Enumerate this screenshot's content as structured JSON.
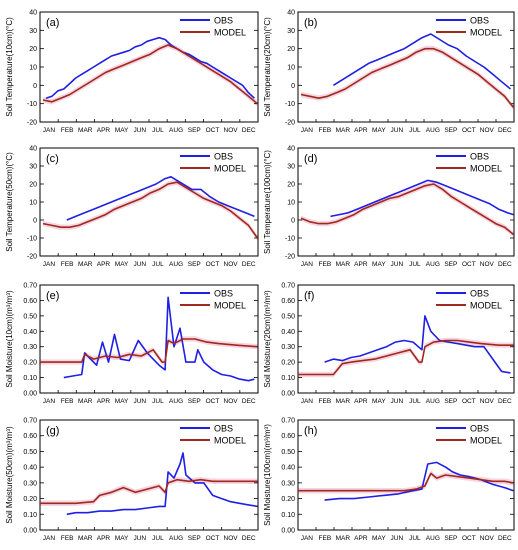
{
  "months": [
    "JAN",
    "FEB",
    "MAR",
    "APR",
    "MAY",
    "JUN",
    "JUL",
    "AUG",
    "SEP",
    "OCT",
    "NOV",
    "DEC"
  ],
  "legend": {
    "obs": "OBS",
    "model": "MODEL"
  },
  "colors": {
    "obs": "#1f1fe6",
    "model": "#a0291d",
    "band": "#f4c9d9"
  },
  "chart_data": [
    {
      "type": "line",
      "panel_label": "(a)",
      "ylabel": "Soil Temperature(10cm)(°C)",
      "ylim": [
        -20,
        40
      ],
      "yticks": [
        "-20",
        "-10",
        "0",
        "10",
        "20",
        "30",
        "40"
      ],
      "legend_position": "top-right",
      "series": [
        {
          "name": "OBS",
          "x": [
            10,
            20,
            30,
            40,
            50,
            60,
            70,
            80,
            90,
            100,
            110,
            120,
            130,
            140,
            150,
            160,
            170,
            180,
            190,
            200,
            210,
            220,
            230,
            240,
            250,
            260,
            270,
            280,
            290,
            300,
            310,
            320,
            330,
            340,
            350,
            360
          ],
          "y": [
            -7,
            -6,
            -3,
            -2,
            1,
            4,
            6,
            8,
            10,
            12,
            14,
            16,
            17,
            18,
            19,
            21,
            22,
            24,
            25,
            26,
            25,
            22,
            20,
            18,
            17,
            15,
            13,
            12,
            10,
            8,
            6,
            4,
            2,
            0,
            -4,
            -7
          ]
        },
        {
          "name": "MODEL",
          "x": [
            5,
            20,
            35,
            50,
            65,
            80,
            95,
            110,
            125,
            140,
            155,
            170,
            185,
            200,
            215,
            230,
            245,
            260,
            275,
            290,
            305,
            320,
            335,
            350,
            365
          ],
          "y": [
            -8,
            -9,
            -7,
            -5,
            -2,
            1,
            4,
            7,
            9,
            11,
            13,
            15,
            17,
            20,
            22,
            20,
            17,
            14,
            11,
            8,
            5,
            2,
            -2,
            -6,
            -10
          ]
        }
      ]
    },
    {
      "type": "line",
      "panel_label": "(b)",
      "ylabel": "Soil Temperature(20cm)(°C)",
      "ylim": [
        -20,
        40
      ],
      "yticks": [
        "-20",
        "-10",
        "0",
        "10",
        "20",
        "30",
        "40"
      ],
      "legend_position": "top-right",
      "series": [
        {
          "name": "OBS",
          "x": [
            60,
            75,
            90,
            105,
            120,
            135,
            150,
            165,
            180,
            195,
            210,
            225,
            240,
            255,
            270,
            285,
            300,
            315,
            330,
            345,
            360
          ],
          "y": [
            0,
            3,
            6,
            9,
            12,
            14,
            16,
            18,
            20,
            23,
            26,
            28,
            25,
            22,
            20,
            16,
            13,
            10,
            6,
            2,
            -2
          ]
        },
        {
          "name": "MODEL",
          "x": [
            5,
            20,
            35,
            50,
            65,
            80,
            95,
            110,
            125,
            140,
            155,
            170,
            185,
            200,
            215,
            230,
            245,
            260,
            275,
            290,
            305,
            320,
            335,
            350,
            365
          ],
          "y": [
            -5,
            -6,
            -7,
            -6,
            -4,
            -2,
            1,
            4,
            7,
            9,
            11,
            13,
            15,
            18,
            20,
            20,
            18,
            15,
            12,
            9,
            6,
            2,
            -2,
            -6,
            -12
          ]
        }
      ]
    },
    {
      "type": "line",
      "panel_label": "(c)",
      "ylabel": "Soil Temperature(50cm)(°C)",
      "ylim": [
        -20,
        40
      ],
      "yticks": [
        "-20",
        "-10",
        "0",
        "10",
        "20",
        "30",
        "40"
      ],
      "legend_position": "top-right",
      "series": [
        {
          "name": "OBS",
          "x": [
            45,
            60,
            75,
            90,
            105,
            120,
            135,
            150,
            165,
            180,
            195,
            210,
            220,
            230,
            240,
            255,
            270,
            285,
            300,
            315,
            330,
            345,
            360
          ],
          "y": [
            0,
            2,
            4,
            6,
            8,
            10,
            12,
            14,
            16,
            18,
            20,
            23,
            24,
            22,
            20,
            17,
            17,
            13,
            10,
            8,
            6,
            4,
            2
          ]
        },
        {
          "name": "MODEL",
          "x": [
            5,
            20,
            35,
            50,
            65,
            80,
            95,
            110,
            125,
            140,
            155,
            170,
            185,
            200,
            215,
            230,
            245,
            260,
            275,
            290,
            305,
            320,
            335,
            350,
            365
          ],
          "y": [
            -2,
            -3,
            -4,
            -4,
            -3,
            -1,
            1,
            3,
            6,
            8,
            10,
            12,
            15,
            17,
            20,
            21,
            18,
            15,
            12,
            10,
            8,
            5,
            1,
            -3,
            -10
          ]
        }
      ]
    },
    {
      "type": "line",
      "panel_label": "(d)",
      "ylabel": "Soil Temperature(100cm)(°C)",
      "ylim": [
        -20,
        40
      ],
      "yticks": [
        "-20",
        "-10",
        "0",
        "10",
        "20",
        "30",
        "40"
      ],
      "legend_position": "top-right",
      "series": [
        {
          "name": "OBS",
          "x": [
            55,
            70,
            85,
            100,
            115,
            130,
            145,
            160,
            175,
            190,
            205,
            220,
            235,
            250,
            265,
            280,
            295,
            310,
            325,
            340,
            355,
            365
          ],
          "y": [
            2,
            3,
            4,
            6,
            8,
            10,
            12,
            14,
            16,
            18,
            20,
            22,
            21,
            19,
            17,
            15,
            13,
            11,
            9,
            6,
            4,
            3
          ]
        },
        {
          "name": "MODEL",
          "x": [
            5,
            20,
            35,
            50,
            65,
            80,
            95,
            110,
            125,
            140,
            155,
            170,
            185,
            200,
            215,
            230,
            245,
            260,
            275,
            290,
            305,
            320,
            335,
            350,
            365
          ],
          "y": [
            1,
            -1,
            -2,
            -2,
            -1,
            1,
            3,
            6,
            8,
            10,
            12,
            13,
            15,
            17,
            19,
            20,
            17,
            13,
            10,
            7,
            4,
            1,
            -2,
            -4,
            -8
          ]
        }
      ]
    },
    {
      "type": "line",
      "panel_label": "(e)",
      "ylabel": "Soil Moisture(10cm)(m³/m³)",
      "ylim": [
        0,
        0.7
      ],
      "yticks": [
        "0.00",
        "0.10",
        "0.20",
        "0.30",
        "0.40",
        "0.50",
        "0.60",
        "0.70"
      ],
      "legend_position": "top-right",
      "series": [
        {
          "name": "OBS",
          "x": [
            40,
            55,
            70,
            75,
            85,
            95,
            105,
            115,
            125,
            135,
            150,
            165,
            180,
            200,
            210,
            215,
            225,
            235,
            245,
            260,
            265,
            275,
            290,
            305,
            320,
            335,
            350,
            360
          ],
          "y": [
            0.1,
            0.11,
            0.12,
            0.26,
            0.22,
            0.18,
            0.33,
            0.2,
            0.38,
            0.22,
            0.21,
            0.34,
            0.26,
            0.18,
            0.15,
            0.62,
            0.3,
            0.42,
            0.2,
            0.2,
            0.28,
            0.2,
            0.15,
            0.12,
            0.11,
            0.09,
            0.08,
            0.09
          ]
        },
        {
          "name": "MODEL",
          "x": [
            0,
            30,
            60,
            70,
            75,
            90,
            110,
            130,
            150,
            170,
            190,
            205,
            210,
            215,
            225,
            240,
            260,
            280,
            300,
            330,
            365
          ],
          "y": [
            0.2,
            0.2,
            0.2,
            0.2,
            0.25,
            0.22,
            0.24,
            0.23,
            0.25,
            0.24,
            0.28,
            0.2,
            0.2,
            0.34,
            0.32,
            0.35,
            0.35,
            0.33,
            0.32,
            0.31,
            0.3
          ]
        }
      ]
    },
    {
      "type": "line",
      "panel_label": "(f)",
      "ylabel": "Soil Moisture(20cm)(m³/m³)",
      "ylim": [
        0,
        0.7
      ],
      "yticks": [
        "0.00",
        "0.10",
        "0.20",
        "0.30",
        "0.40",
        "0.50",
        "0.60",
        "0.70"
      ],
      "legend_position": "top-right",
      "series": [
        {
          "name": "OBS",
          "x": [
            45,
            60,
            75,
            90,
            105,
            120,
            135,
            150,
            165,
            180,
            195,
            210,
            215,
            225,
            240,
            255,
            270,
            285,
            300,
            315,
            330,
            345,
            360
          ],
          "y": [
            0.2,
            0.22,
            0.21,
            0.23,
            0.24,
            0.26,
            0.28,
            0.3,
            0.33,
            0.34,
            0.33,
            0.28,
            0.5,
            0.4,
            0.34,
            0.33,
            0.32,
            0.31,
            0.3,
            0.3,
            0.22,
            0.14,
            0.13
          ]
        },
        {
          "name": "MODEL",
          "x": [
            0,
            30,
            60,
            75,
            90,
            110,
            130,
            150,
            170,
            190,
            205,
            210,
            215,
            230,
            250,
            270,
            290,
            310,
            340,
            365
          ],
          "y": [
            0.12,
            0.12,
            0.12,
            0.19,
            0.2,
            0.21,
            0.22,
            0.24,
            0.26,
            0.28,
            0.2,
            0.2,
            0.3,
            0.33,
            0.34,
            0.34,
            0.33,
            0.32,
            0.31,
            0.31
          ]
        }
      ]
    },
    {
      "type": "line",
      "panel_label": "(g)",
      "ylabel": "Soil Moisture(50cm)(m³/m³)",
      "ylim": [
        0,
        0.7
      ],
      "yticks": [
        "0.00",
        "0.10",
        "0.20",
        "0.30",
        "0.40",
        "0.50",
        "0.60",
        "0.70"
      ],
      "legend_position": "top-right",
      "series": [
        {
          "name": "OBS",
          "x": [
            45,
            60,
            80,
            100,
            120,
            140,
            160,
            180,
            200,
            210,
            215,
            225,
            235,
            240,
            245,
            260,
            275,
            290,
            305,
            320,
            335,
            350,
            365
          ],
          "y": [
            0.1,
            0.11,
            0.11,
            0.12,
            0.12,
            0.13,
            0.13,
            0.14,
            0.15,
            0.15,
            0.37,
            0.33,
            0.42,
            0.49,
            0.35,
            0.3,
            0.3,
            0.22,
            0.2,
            0.18,
            0.17,
            0.16,
            0.15
          ]
        },
        {
          "name": "MODEL",
          "x": [
            0,
            30,
            60,
            90,
            100,
            120,
            140,
            160,
            180,
            200,
            210,
            215,
            230,
            250,
            270,
            290,
            310,
            330,
            365
          ],
          "y": [
            0.17,
            0.17,
            0.17,
            0.18,
            0.22,
            0.24,
            0.27,
            0.24,
            0.26,
            0.28,
            0.24,
            0.3,
            0.32,
            0.31,
            0.32,
            0.31,
            0.31,
            0.31,
            0.31
          ]
        }
      ]
    },
    {
      "type": "line",
      "panel_label": "(h)",
      "ylabel": "Soil Moisture(100cm)(m³/m³)",
      "ylim": [
        0,
        0.7
      ],
      "yticks": [
        "0.00",
        "0.10",
        "0.20",
        "0.30",
        "0.40",
        "0.50",
        "0.60",
        "0.70"
      ],
      "legend_position": "top-right",
      "series": [
        {
          "name": "OBS",
          "x": [
            45,
            70,
            95,
            120,
            145,
            170,
            195,
            210,
            220,
            235,
            250,
            262,
            275,
            290,
            310,
            330,
            350,
            365
          ],
          "y": [
            0.19,
            0.2,
            0.2,
            0.21,
            0.22,
            0.23,
            0.25,
            0.26,
            0.42,
            0.43,
            0.4,
            0.37,
            0.35,
            0.34,
            0.32,
            0.29,
            0.27,
            0.25
          ]
        },
        {
          "name": "MODEL",
          "x": [
            0,
            30,
            60,
            90,
            120,
            150,
            180,
            200,
            215,
            225,
            235,
            250,
            270,
            290,
            310,
            330,
            350,
            365
          ],
          "y": [
            0.25,
            0.25,
            0.25,
            0.25,
            0.25,
            0.25,
            0.25,
            0.26,
            0.28,
            0.36,
            0.33,
            0.35,
            0.34,
            0.33,
            0.32,
            0.31,
            0.31,
            0.3
          ]
        }
      ]
    }
  ]
}
